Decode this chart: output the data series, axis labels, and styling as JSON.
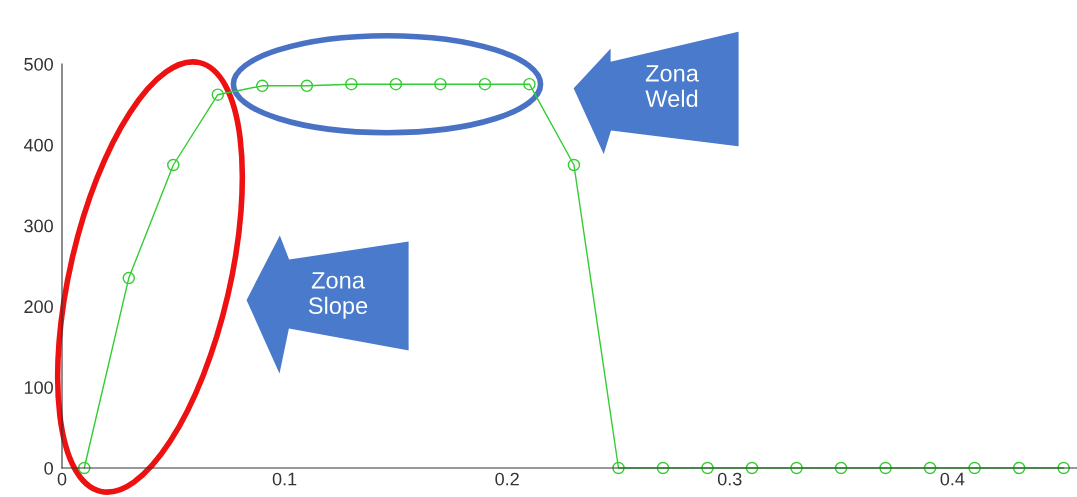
{
  "chart_data": {
    "type": "line",
    "x": [
      0.01,
      0.03,
      0.05,
      0.07,
      0.09,
      0.11,
      0.13,
      0.15,
      0.17,
      0.19,
      0.21,
      0.23,
      0.25,
      0.27,
      0.29,
      0.31,
      0.33,
      0.35,
      0.37,
      0.39,
      0.41,
      0.43,
      0.45
    ],
    "series": [
      {
        "color": "#33cc33",
        "values": [
          0,
          235,
          375,
          462,
          473,
          473,
          475,
          475,
          475,
          475,
          475,
          375,
          0,
          0,
          0,
          0,
          0,
          0,
          0,
          0,
          0,
          0,
          0
        ]
      }
    ],
    "marker": "circle",
    "line_style": "solid",
    "grid": false,
    "xlim": [
      0,
      0.456
    ],
    "ylim": [
      0,
      500
    ],
    "xticks": [
      0,
      0.1,
      0.2,
      0.3,
      0.4
    ],
    "yticks": [
      0,
      100,
      200,
      300,
      400,
      500
    ],
    "annotations": [
      "Zona\nWeld",
      "Zona\nSlope"
    ]
  }
}
